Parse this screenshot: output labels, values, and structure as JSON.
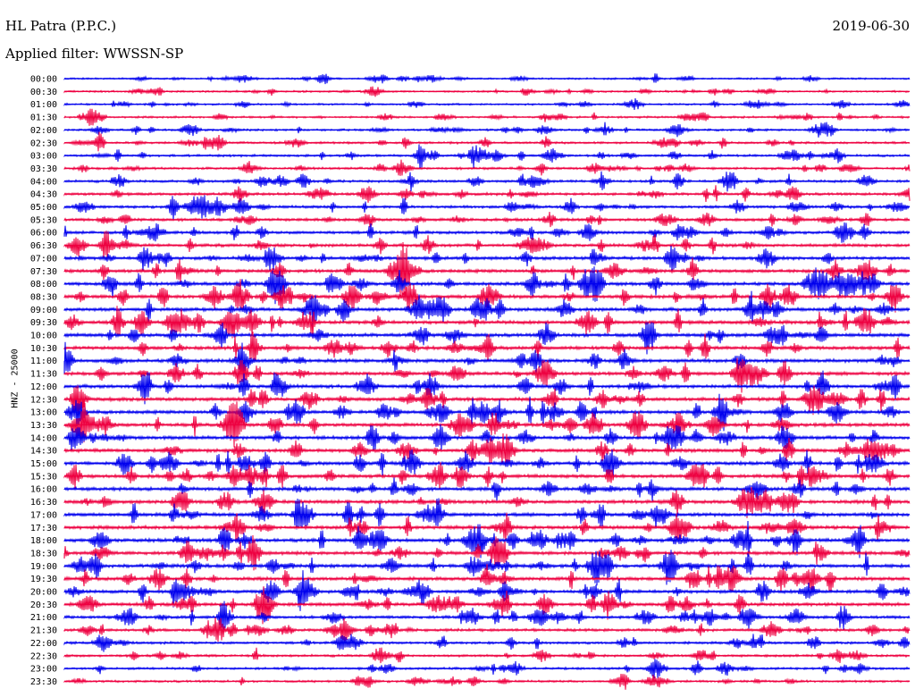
{
  "header": {
    "station": "HL Patra (P.P.C.)",
    "date": "2019-06-30",
    "filter": "Applied filter: WWSSN-SP"
  },
  "chart_data": {
    "type": "line",
    "ylabel": "HNZ - 25000",
    "row_labels": [
      "00:00",
      "00:30",
      "01:00",
      "01:30",
      "02:00",
      "02:30",
      "03:00",
      "03:30",
      "04:00",
      "04:30",
      "05:00",
      "05:30",
      "06:00",
      "06:30",
      "07:00",
      "07:30",
      "08:00",
      "08:30",
      "09:00",
      "09:30",
      "10:00",
      "10:30",
      "11:00",
      "11:30",
      "12:00",
      "12:30",
      "13:00",
      "13:30",
      "14:00",
      "14:30",
      "15:00",
      "15:30",
      "16:00",
      "16:30",
      "17:00",
      "17:30",
      "18:00",
      "18:30",
      "19:00",
      "19:30",
      "20:00",
      "20:30",
      "21:00",
      "21:30",
      "22:00",
      "22:30",
      "23:00",
      "23:30"
    ],
    "series_colors": [
      "#0000ee",
      "#ee0040"
    ],
    "relative_amplitude": [
      0.25,
      0.3,
      0.3,
      0.35,
      0.4,
      0.45,
      0.5,
      0.55,
      0.6,
      0.65,
      0.7,
      0.75,
      0.8,
      0.85,
      0.9,
      0.95,
      1.0,
      1.0,
      1.0,
      1.0,
      1.0,
      1.0,
      1.0,
      1.0,
      1.0,
      1.0,
      1.0,
      1.0,
      1.0,
      1.0,
      1.0,
      1.0,
      1.0,
      1.0,
      1.0,
      1.0,
      1.0,
      1.0,
      1.0,
      1.0,
      0.95,
      0.9,
      0.8,
      0.7,
      0.6,
      0.55,
      0.5,
      0.45
    ],
    "grid": false
  }
}
